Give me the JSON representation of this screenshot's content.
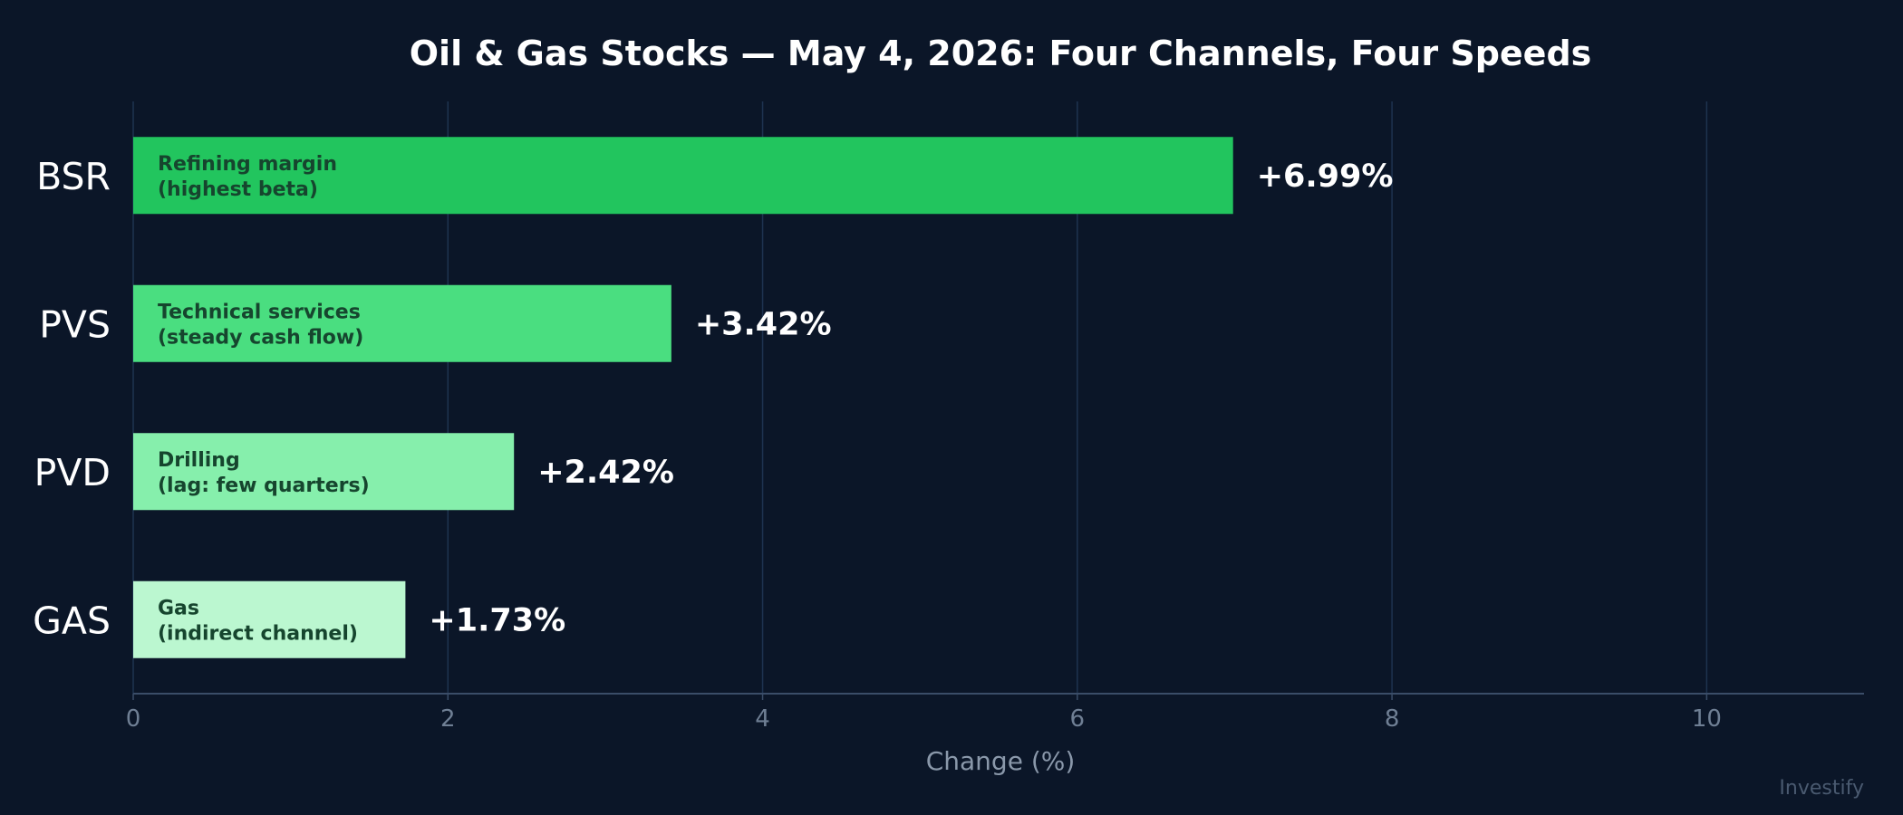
{
  "chart_data": {
    "type": "bar",
    "orientation": "horizontal",
    "title": "Oil & Gas Stocks — May 4, 2026: Four Channels, Four Speeds",
    "xlabel": "Change (%)",
    "ylabel": "",
    "xlim": [
      0,
      11
    ],
    "xticks": [
      0,
      2,
      4,
      6,
      8,
      10
    ],
    "grid": "vertical",
    "categories": [
      "BSR",
      "PVS",
      "PVD",
      "GAS"
    ],
    "values": [
      6.99,
      3.42,
      2.42,
      1.73
    ],
    "value_labels": [
      "+6.99%",
      "+3.42%",
      "+2.42%",
      "+1.73%"
    ],
    "bar_notes": [
      [
        "Refining margin",
        "(highest beta)"
      ],
      [
        "Technical services",
        "(steady cash flow)"
      ],
      [
        "Drilling",
        "(lag: few quarters)"
      ],
      [
        "Gas",
        "(indirect channel)"
      ]
    ],
    "bar_colors": [
      "#22c55e",
      "#4ade80",
      "#86efac",
      "#bbf7d0"
    ]
  },
  "watermark": "Investify",
  "colors": {
    "background": "#0b1628",
    "grid": "#1e3350",
    "axis": "#3a4d68"
  }
}
